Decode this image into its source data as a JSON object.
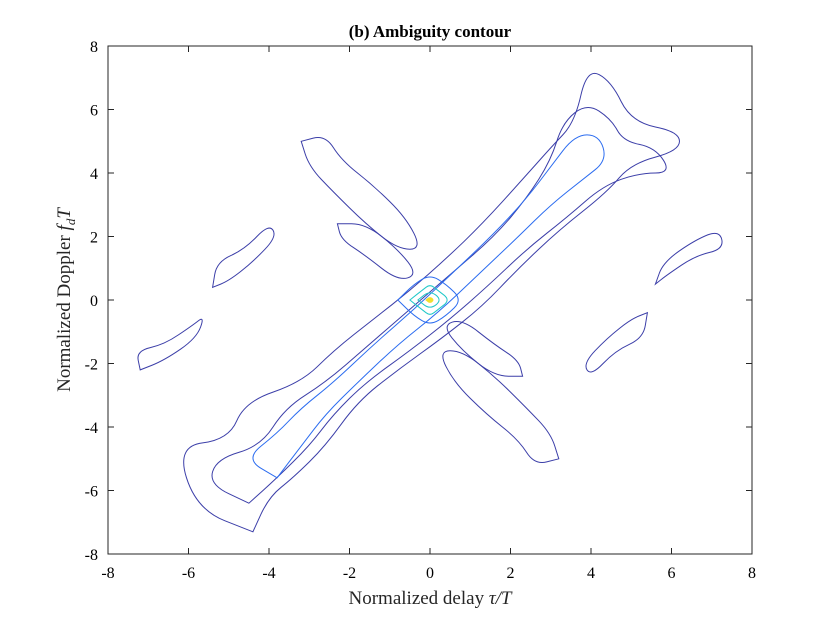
{
  "chart_data": {
    "type": "contour",
    "title": "(b) Ambiguity contour",
    "xlabel": {
      "text": "Normalized delay ",
      "math": "τ/T"
    },
    "ylabel": {
      "text": "Normalized Doppler ",
      "math_main": "f",
      "math_sub": "d",
      "math_tail": "T"
    },
    "xlim": [
      -8,
      8
    ],
    "ylim": [
      -8,
      8
    ],
    "xticks": [
      -8,
      -6,
      -4,
      -2,
      0,
      2,
      4,
      6,
      8
    ],
    "yticks": [
      -8,
      -6,
      -4,
      -2,
      0,
      2,
      4,
      6,
      8
    ],
    "xtick_labels": [
      "-8",
      "-6",
      "-4",
      "-2",
      "0",
      "2",
      "4",
      "6",
      "8"
    ],
    "ytick_labels": [
      "-8",
      "-6",
      "-4",
      "-2",
      "0",
      "2",
      "4",
      "6",
      "8"
    ],
    "grid": false,
    "box": true,
    "colors": {
      "outer_contour": "#3b3ea8",
      "mid_contour": "#2b6cf0",
      "inner_contour": "#1fc8c8",
      "peak": "#f0e030",
      "axes": "#262626"
    },
    "contours": [
      {
        "name": "diag-main-a",
        "level": 0.05,
        "points": [
          [
            -4.4,
            -7.3
          ],
          [
            -5.8,
            -6.6
          ],
          [
            -6.3,
            -4.6
          ],
          [
            -5.0,
            -4.4
          ],
          [
            -4.6,
            -3.2
          ],
          [
            -3.2,
            -2.6
          ],
          [
            -2.4,
            -1.6
          ],
          [
            -1.4,
            -0.6
          ],
          [
            -0.5,
            0.3
          ],
          [
            0.4,
            1.3
          ],
          [
            1.3,
            2.4
          ],
          [
            2.3,
            3.8
          ],
          [
            3.0,
            4.8
          ],
          [
            3.6,
            5.6
          ],
          [
            3.9,
            7.3
          ],
          [
            4.5,
            6.9
          ],
          [
            5.0,
            5.6
          ],
          [
            6.2,
            5.3
          ],
          [
            6.2,
            4.7
          ],
          [
            5.0,
            4.3
          ],
          [
            4.4,
            3.4
          ],
          [
            3.2,
            2.2
          ],
          [
            2.2,
            1.0
          ],
          [
            1.3,
            -0.2
          ],
          [
            0.3,
            -1.2
          ],
          [
            -0.8,
            -2.2
          ],
          [
            -1.8,
            -3.2
          ],
          [
            -2.6,
            -4.6
          ],
          [
            -3.4,
            -5.6
          ],
          [
            -4.0,
            -6.2
          ]
        ]
      },
      {
        "name": "diag-main-b",
        "level": 0.1,
        "points": [
          [
            -4.5,
            -6.4
          ],
          [
            -5.5,
            -5.8
          ],
          [
            -5.3,
            -5.0
          ],
          [
            -4.2,
            -4.6
          ],
          [
            -3.6,
            -3.4
          ],
          [
            -2.6,
            -2.6
          ],
          [
            -1.6,
            -1.5
          ],
          [
            -0.6,
            -0.4
          ],
          [
            0.5,
            0.8
          ],
          [
            1.6,
            2.0
          ],
          [
            2.4,
            3.2
          ],
          [
            3.0,
            4.4
          ],
          [
            3.3,
            5.6
          ],
          [
            3.9,
            6.2
          ],
          [
            4.5,
            5.7
          ],
          [
            4.8,
            5.0
          ],
          [
            5.6,
            4.8
          ],
          [
            6.0,
            4.0
          ],
          [
            5.2,
            4.0
          ],
          [
            4.3,
            3.6
          ],
          [
            3.4,
            2.6
          ],
          [
            2.4,
            1.6
          ],
          [
            1.4,
            0.4
          ],
          [
            0.5,
            -0.6
          ],
          [
            -0.5,
            -1.6
          ],
          [
            -1.6,
            -2.6
          ],
          [
            -2.4,
            -3.6
          ],
          [
            -3.0,
            -4.6
          ],
          [
            -3.8,
            -5.6
          ]
        ]
      },
      {
        "name": "diag-main-c",
        "level": 0.15,
        "points": [
          [
            -3.8,
            -5.6
          ],
          [
            -4.6,
            -5.0
          ],
          [
            -3.8,
            -4.2
          ],
          [
            -3.2,
            -3.4
          ],
          [
            -2.4,
            -2.6
          ],
          [
            -1.4,
            -1.4
          ],
          [
            -0.4,
            -0.3
          ],
          [
            0.6,
            0.9
          ],
          [
            1.6,
            2.1
          ],
          [
            2.4,
            3.2
          ],
          [
            3.0,
            4.2
          ],
          [
            3.6,
            5.2
          ],
          [
            4.2,
            5.2
          ],
          [
            4.4,
            4.4
          ],
          [
            3.8,
            3.8
          ],
          [
            3.0,
            3.0
          ],
          [
            2.2,
            2.0
          ],
          [
            1.2,
            0.8
          ],
          [
            0.2,
            -0.4
          ],
          [
            -0.8,
            -1.4
          ],
          [
            -1.8,
            -2.6
          ],
          [
            -2.6,
            -3.6
          ],
          [
            -3.2,
            -4.6
          ]
        ]
      },
      {
        "name": "anti-diag-upper-left",
        "level": 0.05,
        "points": [
          [
            -3.2,
            5.0
          ],
          [
            -2.6,
            5.2
          ],
          [
            -2.2,
            4.4
          ],
          [
            -1.4,
            3.6
          ],
          [
            -0.6,
            2.6
          ],
          [
            -0.2,
            1.6
          ],
          [
            -0.8,
            1.6
          ],
          [
            -1.6,
            2.4
          ],
          [
            -2.4,
            3.4
          ],
          [
            -3.0,
            4.2
          ]
        ]
      },
      {
        "name": "anti-diag-lower-right",
        "level": 0.05,
        "points": [
          [
            3.2,
            -5.0
          ],
          [
            2.6,
            -5.2
          ],
          [
            2.2,
            -4.4
          ],
          [
            1.4,
            -3.6
          ],
          [
            0.6,
            -2.6
          ],
          [
            0.2,
            -1.6
          ],
          [
            0.8,
            -1.6
          ],
          [
            1.6,
            -2.4
          ],
          [
            2.4,
            -3.4
          ],
          [
            3.0,
            -4.2
          ]
        ]
      },
      {
        "name": "anti-diag-mid-left",
        "level": 0.1,
        "points": [
          [
            -2.3,
            2.4
          ],
          [
            -1.6,
            2.4
          ],
          [
            -0.8,
            1.6
          ],
          [
            -0.3,
            0.8
          ],
          [
            -0.8,
            0.6
          ],
          [
            -1.6,
            1.4
          ],
          [
            -2.2,
            1.9
          ]
        ]
      },
      {
        "name": "anti-diag-mid-right",
        "level": 0.1,
        "points": [
          [
            2.3,
            -2.4
          ],
          [
            1.6,
            -2.4
          ],
          [
            0.8,
            -1.6
          ],
          [
            0.3,
            -0.8
          ],
          [
            0.8,
            -0.6
          ],
          [
            1.6,
            -1.4
          ],
          [
            2.2,
            -1.9
          ]
        ]
      },
      {
        "name": "blob-upper-left",
        "level": 0.05,
        "points": [
          [
            -5.4,
            0.4
          ],
          [
            -5.3,
            1.2
          ],
          [
            -4.6,
            1.6
          ],
          [
            -4.0,
            2.4
          ],
          [
            -3.8,
            2.0
          ],
          [
            -4.4,
            1.2
          ],
          [
            -5.0,
            0.6
          ]
        ]
      },
      {
        "name": "blob-lower-left",
        "level": 0.05,
        "points": [
          [
            -7.2,
            -2.2
          ],
          [
            -7.3,
            -1.6
          ],
          [
            -6.6,
            -1.4
          ],
          [
            -5.9,
            -0.8
          ],
          [
            -5.6,
            -0.5
          ],
          [
            -5.8,
            -1.2
          ],
          [
            -6.6,
            -1.9
          ]
        ]
      },
      {
        "name": "blob-upper-right",
        "level": 0.05,
        "points": [
          [
            5.6,
            0.5
          ],
          [
            5.9,
            0.8
          ],
          [
            6.6,
            1.4
          ],
          [
            7.3,
            1.6
          ],
          [
            7.2,
            2.2
          ],
          [
            6.6,
            1.9
          ],
          [
            5.8,
            1.2
          ]
        ]
      },
      {
        "name": "blob-lower-right",
        "level": 0.05,
        "points": [
          [
            5.4,
            -0.4
          ],
          [
            5.3,
            -1.2
          ],
          [
            4.6,
            -1.6
          ],
          [
            4.0,
            -2.4
          ],
          [
            3.8,
            -2.0
          ],
          [
            4.4,
            -1.2
          ],
          [
            5.0,
            -0.6
          ]
        ]
      },
      {
        "name": "center-ring-1",
        "level": 0.3,
        "points": [
          [
            -0.8,
            0.0
          ],
          [
            -0.4,
            0.5
          ],
          [
            0.0,
            0.8
          ],
          [
            0.4,
            0.5
          ],
          [
            0.8,
            0.0
          ],
          [
            0.4,
            -0.5
          ],
          [
            0.0,
            -0.8
          ],
          [
            -0.4,
            -0.5
          ]
        ]
      },
      {
        "name": "center-ring-2",
        "level": 0.5,
        "points": [
          [
            -0.5,
            0.0
          ],
          [
            -0.2,
            0.3
          ],
          [
            0.0,
            0.5
          ],
          [
            0.2,
            0.3
          ],
          [
            0.5,
            0.0
          ],
          [
            0.2,
            -0.3
          ],
          [
            0.0,
            -0.5
          ],
          [
            -0.2,
            -0.3
          ]
        ]
      },
      {
        "name": "center-ring-3",
        "level": 0.7,
        "points": [
          [
            -0.3,
            0.0
          ],
          [
            0.0,
            0.3
          ],
          [
            0.3,
            0.0
          ],
          [
            0.0,
            -0.3
          ]
        ]
      },
      {
        "name": "center-peak",
        "level": 0.95,
        "points": [
          [
            -0.1,
            0.0
          ],
          [
            0.0,
            0.1
          ],
          [
            0.1,
            0.0
          ],
          [
            0.0,
            -0.1
          ]
        ]
      }
    ]
  }
}
